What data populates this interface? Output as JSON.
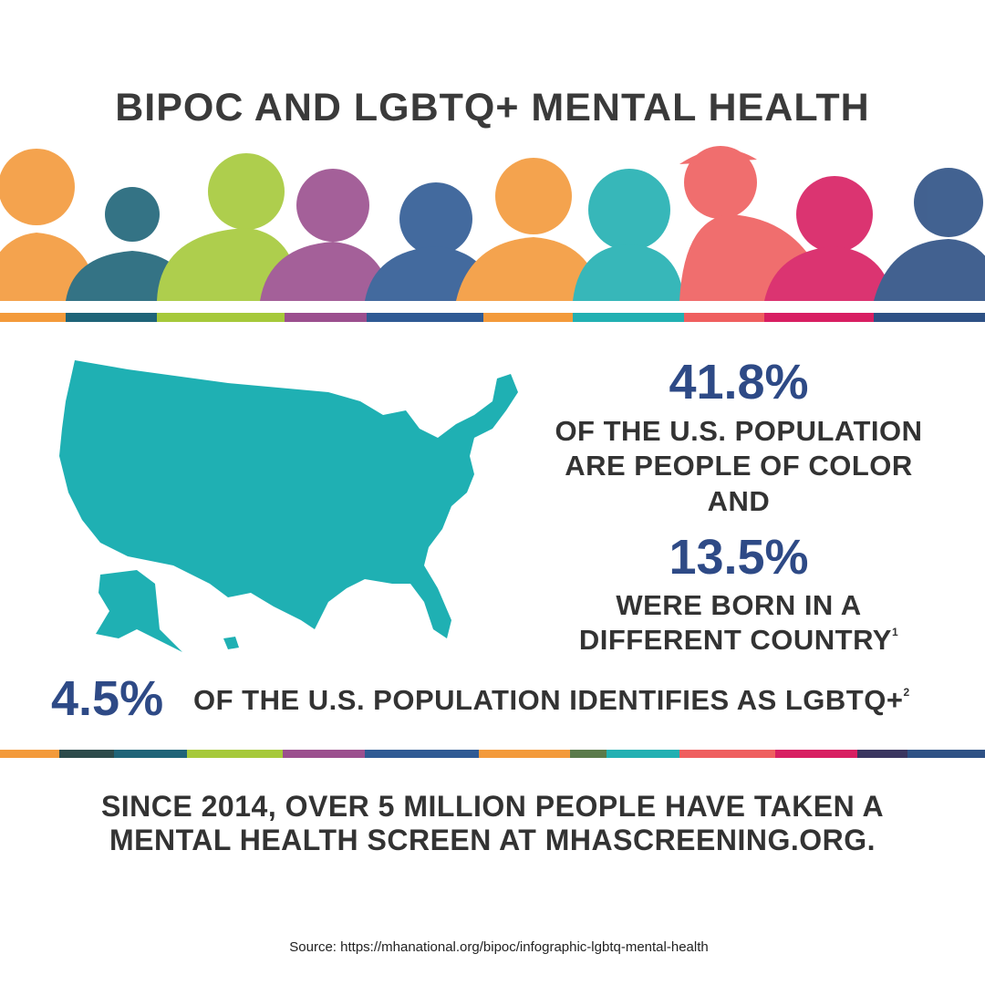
{
  "title": "BIPOC AND LGBTQ+ MENTAL HEALTH",
  "stat_poc": {
    "figure": "41.8%",
    "text": [
      "OF THE U.S. POPULATION",
      "ARE PEOPLE OF COLOR"
    ]
  },
  "connector": "AND",
  "stat_foreign": {
    "figure": "13.5%",
    "text": [
      "WERE BORN IN A",
      "DIFFERENT COUNTRY"
    ],
    "note": "1"
  },
  "stat_lgbtq": {
    "figure": "4.5%",
    "text": "OF THE U.S. POPULATION IDENTIFIES AS LGBTQ+",
    "note": "2"
  },
  "footer": [
    "SINCE 2014, OVER 5 MILLION PEOPLE HAVE TAKEN A",
    "MENTAL HEALTH SCREEN AT MHASCREENING.ORG."
  ],
  "source": "Source: https://mhanational.org/bipoc/infographic-lgbtq-mental-health"
}
